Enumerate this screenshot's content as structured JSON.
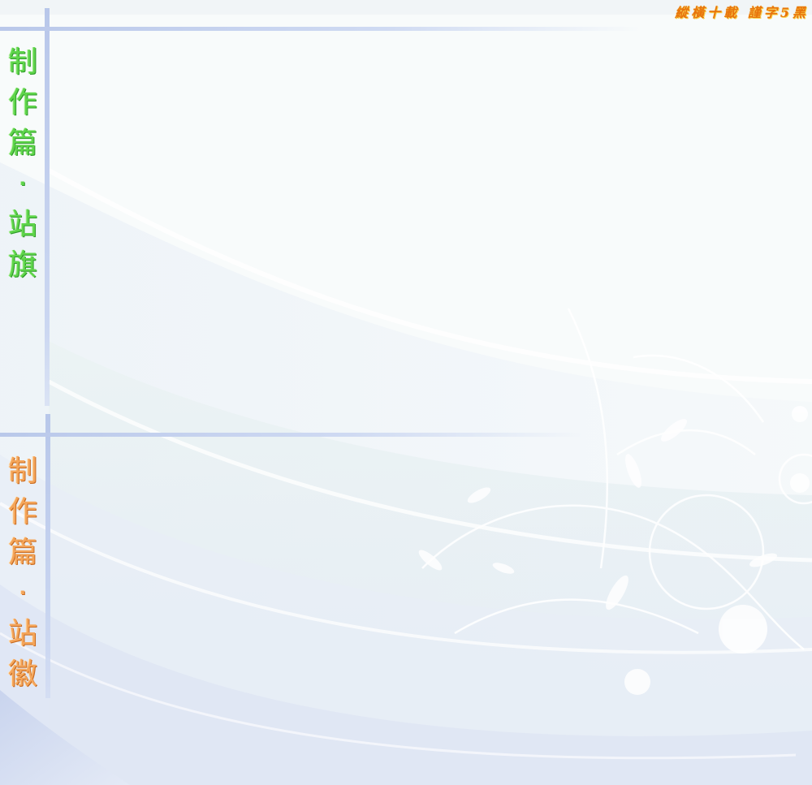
{
  "brand": {
    "text": "縱橫十載 謹字5黑"
  },
  "sections": [
    {
      "chars": [
        "制",
        "作",
        "篇",
        "·",
        "站",
        "旗"
      ],
      "color": "#5fd54b"
    },
    {
      "chars": [
        "制",
        "作",
        "篇",
        "·",
        "站",
        "徽"
      ],
      "color": "#f4a55a"
    }
  ]
}
